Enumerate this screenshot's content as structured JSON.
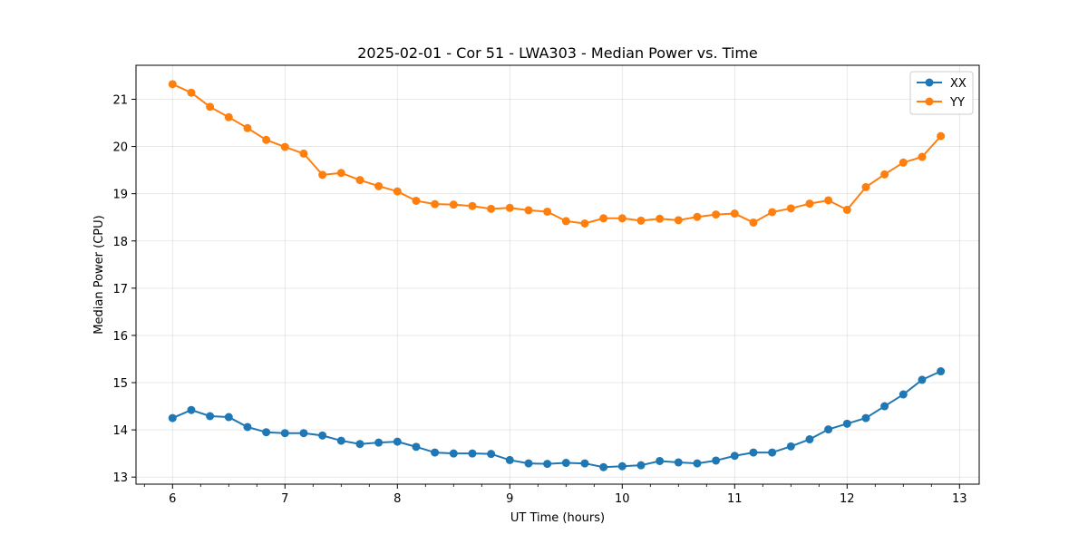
{
  "chart_data": {
    "type": "line",
    "title": "2025-02-01 - Cor 51 - LWA303 - Median Power vs. Time",
    "xlabel": "UT Time (hours)",
    "ylabel": "Median Power (CPU)",
    "xlim": [
      5.675,
      13.175
    ],
    "ylim": [
      12.85,
      21.72
    ],
    "xticks": [
      6,
      7,
      8,
      9,
      10,
      11,
      12,
      13
    ],
    "xtick_labels": [
      "6",
      "7",
      "8",
      "9",
      "10",
      "11",
      "12",
      "13"
    ],
    "minor_xticks": [
      5.75,
      6.25,
      6.5,
      6.75,
      7.25,
      7.5,
      7.75,
      8.25,
      8.5,
      8.75,
      9.25,
      9.5,
      9.75,
      10.25,
      10.5,
      10.75,
      11.25,
      11.5,
      11.75,
      12.25,
      12.5,
      12.75
    ],
    "yticks": [
      13,
      14,
      15,
      16,
      17,
      18,
      19,
      20,
      21
    ],
    "ytick_labels": [
      "13",
      "14",
      "15",
      "16",
      "17",
      "18",
      "19",
      "20",
      "21"
    ],
    "grid": true,
    "legend_position": "top-right",
    "x": [
      6.0,
      6.1667,
      6.3333,
      6.5,
      6.6667,
      6.8333,
      7.0,
      7.1667,
      7.3333,
      7.5,
      7.6667,
      7.8333,
      8.0,
      8.1667,
      8.3333,
      8.5,
      8.6667,
      8.8333,
      9.0,
      9.1667,
      9.3333,
      9.5,
      9.6667,
      9.8333,
      10.0,
      10.1667,
      10.3333,
      10.5,
      10.6667,
      10.8333,
      11.0,
      11.1667,
      11.3333,
      11.5,
      11.6667,
      11.8333,
      12.0,
      12.1667,
      12.3333,
      12.5,
      12.6667,
      12.8333
    ],
    "series": [
      {
        "name": "XX",
        "color": "#1f77b4",
        "values": [
          14.25,
          14.42,
          14.29,
          14.27,
          14.06,
          13.95,
          13.93,
          13.93,
          13.88,
          13.77,
          13.7,
          13.73,
          13.75,
          13.64,
          13.52,
          13.5,
          13.5,
          13.49,
          13.36,
          13.29,
          13.28,
          13.3,
          13.29,
          13.21,
          13.23,
          13.25,
          13.34,
          13.31,
          13.29,
          13.35,
          13.45,
          13.52,
          13.52,
          13.65,
          13.8,
          14.01,
          14.13,
          14.25,
          14.5,
          14.75,
          15.06,
          15.24
        ]
      },
      {
        "name": "YY",
        "color": "#ff7f0e",
        "values": [
          21.32,
          21.14,
          20.84,
          20.62,
          20.39,
          20.14,
          19.99,
          19.85,
          19.4,
          19.44,
          19.29,
          19.16,
          19.05,
          18.85,
          18.78,
          18.77,
          18.74,
          18.68,
          18.7,
          18.65,
          18.62,
          18.42,
          18.37,
          18.48,
          18.48,
          18.43,
          18.47,
          18.44,
          18.51,
          18.56,
          18.58,
          18.39,
          18.61,
          18.69,
          18.79,
          18.86,
          18.66,
          19.14,
          19.41,
          19.66,
          19.78,
          20.22
        ]
      }
    ]
  }
}
